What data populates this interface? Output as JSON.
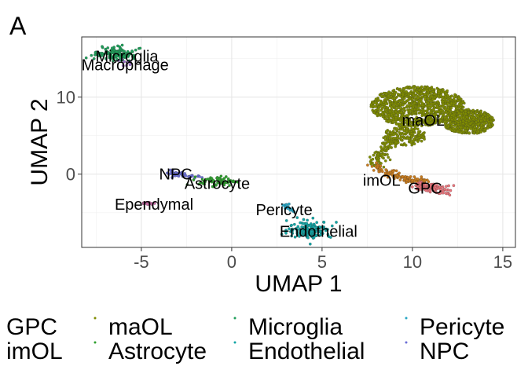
{
  "panel_letter": "A",
  "chart_data": {
    "type": "scatter",
    "title": "",
    "xlabel": "UMAP 1",
    "ylabel": "UMAP 2",
    "xlim": [
      -8.3,
      15.7
    ],
    "ylim": [
      -9.5,
      17.8
    ],
    "xticks": [
      -5,
      0,
      5,
      10,
      15
    ],
    "yticks": [
      0,
      10
    ],
    "xtick_labels": [
      "-5",
      "0",
      "5",
      "10",
      "15"
    ],
    "ytick_labels": [
      "0",
      "10"
    ],
    "grid": true,
    "legend_position": "bottom",
    "clusters": [
      {
        "name": "maOL",
        "color": "#7f8c00",
        "label_x": 10.6,
        "label_y": 7.0,
        "approx_cells": 1800
      },
      {
        "name": "imOL",
        "color": "#c87b1d",
        "label_x": 8.3,
        "label_y": -0.8,
        "approx_cells": 120
      },
      {
        "name": "GPC",
        "color": "#e8747b",
        "label_x": 10.7,
        "label_y": -1.8,
        "approx_cells": 110
      },
      {
        "name": "Microglia",
        "color": "#1f9f5b",
        "label_x": -5.8,
        "label_y": 15.3,
        "approx_cells": 140
      },
      {
        "name": "Macrophage",
        "color": "#9a6fc7",
        "label_x": -5.9,
        "label_y": 14.2,
        "approx_cells": 8
      },
      {
        "name": "NPC",
        "color": "#6b6fd6",
        "label_x": -3.1,
        "label_y": 0.0,
        "approx_cells": 45
      },
      {
        "name": "Astrocyte",
        "color": "#2f9f2f",
        "label_x": -0.8,
        "label_y": -1.2,
        "approx_cells": 70
      },
      {
        "name": "Ependymal",
        "color": "#c86aa6",
        "label_x": -4.3,
        "label_y": -3.9,
        "approx_cells": 12
      },
      {
        "name": "Pericyte",
        "color": "#27a5c4",
        "label_x": 2.9,
        "label_y": -4.6,
        "approx_cells": 18
      },
      {
        "name": "Endothelial",
        "color": "#12a5a5",
        "label_x": 4.8,
        "label_y": -7.4,
        "approx_cells": 150
      }
    ],
    "legend_entries": [
      {
        "name": "GPC",
        "color": "#e8747b"
      },
      {
        "name": "imOL",
        "color": "#c87b1d"
      },
      {
        "name": "maOL",
        "color": "#7f8c00"
      },
      {
        "name": "Astrocyte",
        "color": "#2f9f2f"
      },
      {
        "name": "Microglia",
        "color": "#1f9f5b"
      },
      {
        "name": "Endothelial",
        "color": "#12a5a5"
      },
      {
        "name": "Pericyte",
        "color": "#27a5c4"
      },
      {
        "name": "NPC",
        "color": "#6b6fd6"
      }
    ]
  }
}
